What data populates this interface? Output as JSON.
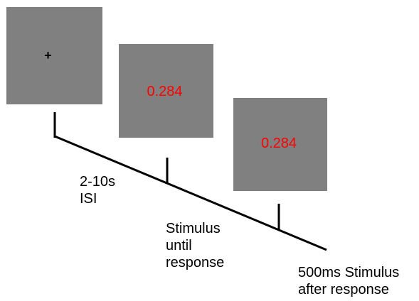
{
  "screens": {
    "fixation": {
      "symbol": "+"
    },
    "stimulus": {
      "value": "0.284"
    },
    "after_response": {
      "value": "0.284"
    }
  },
  "labels": {
    "isi": [
      "2-10s",
      "ISI"
    ],
    "stimulus_until_response": [
      "Stimulus",
      "until",
      "response"
    ],
    "after_response": [
      "500ms Stimulus",
      "after response"
    ]
  },
  "colors": {
    "screen_gray": "#808080",
    "stimulus_text": "#ff0000",
    "line": "#000000"
  }
}
